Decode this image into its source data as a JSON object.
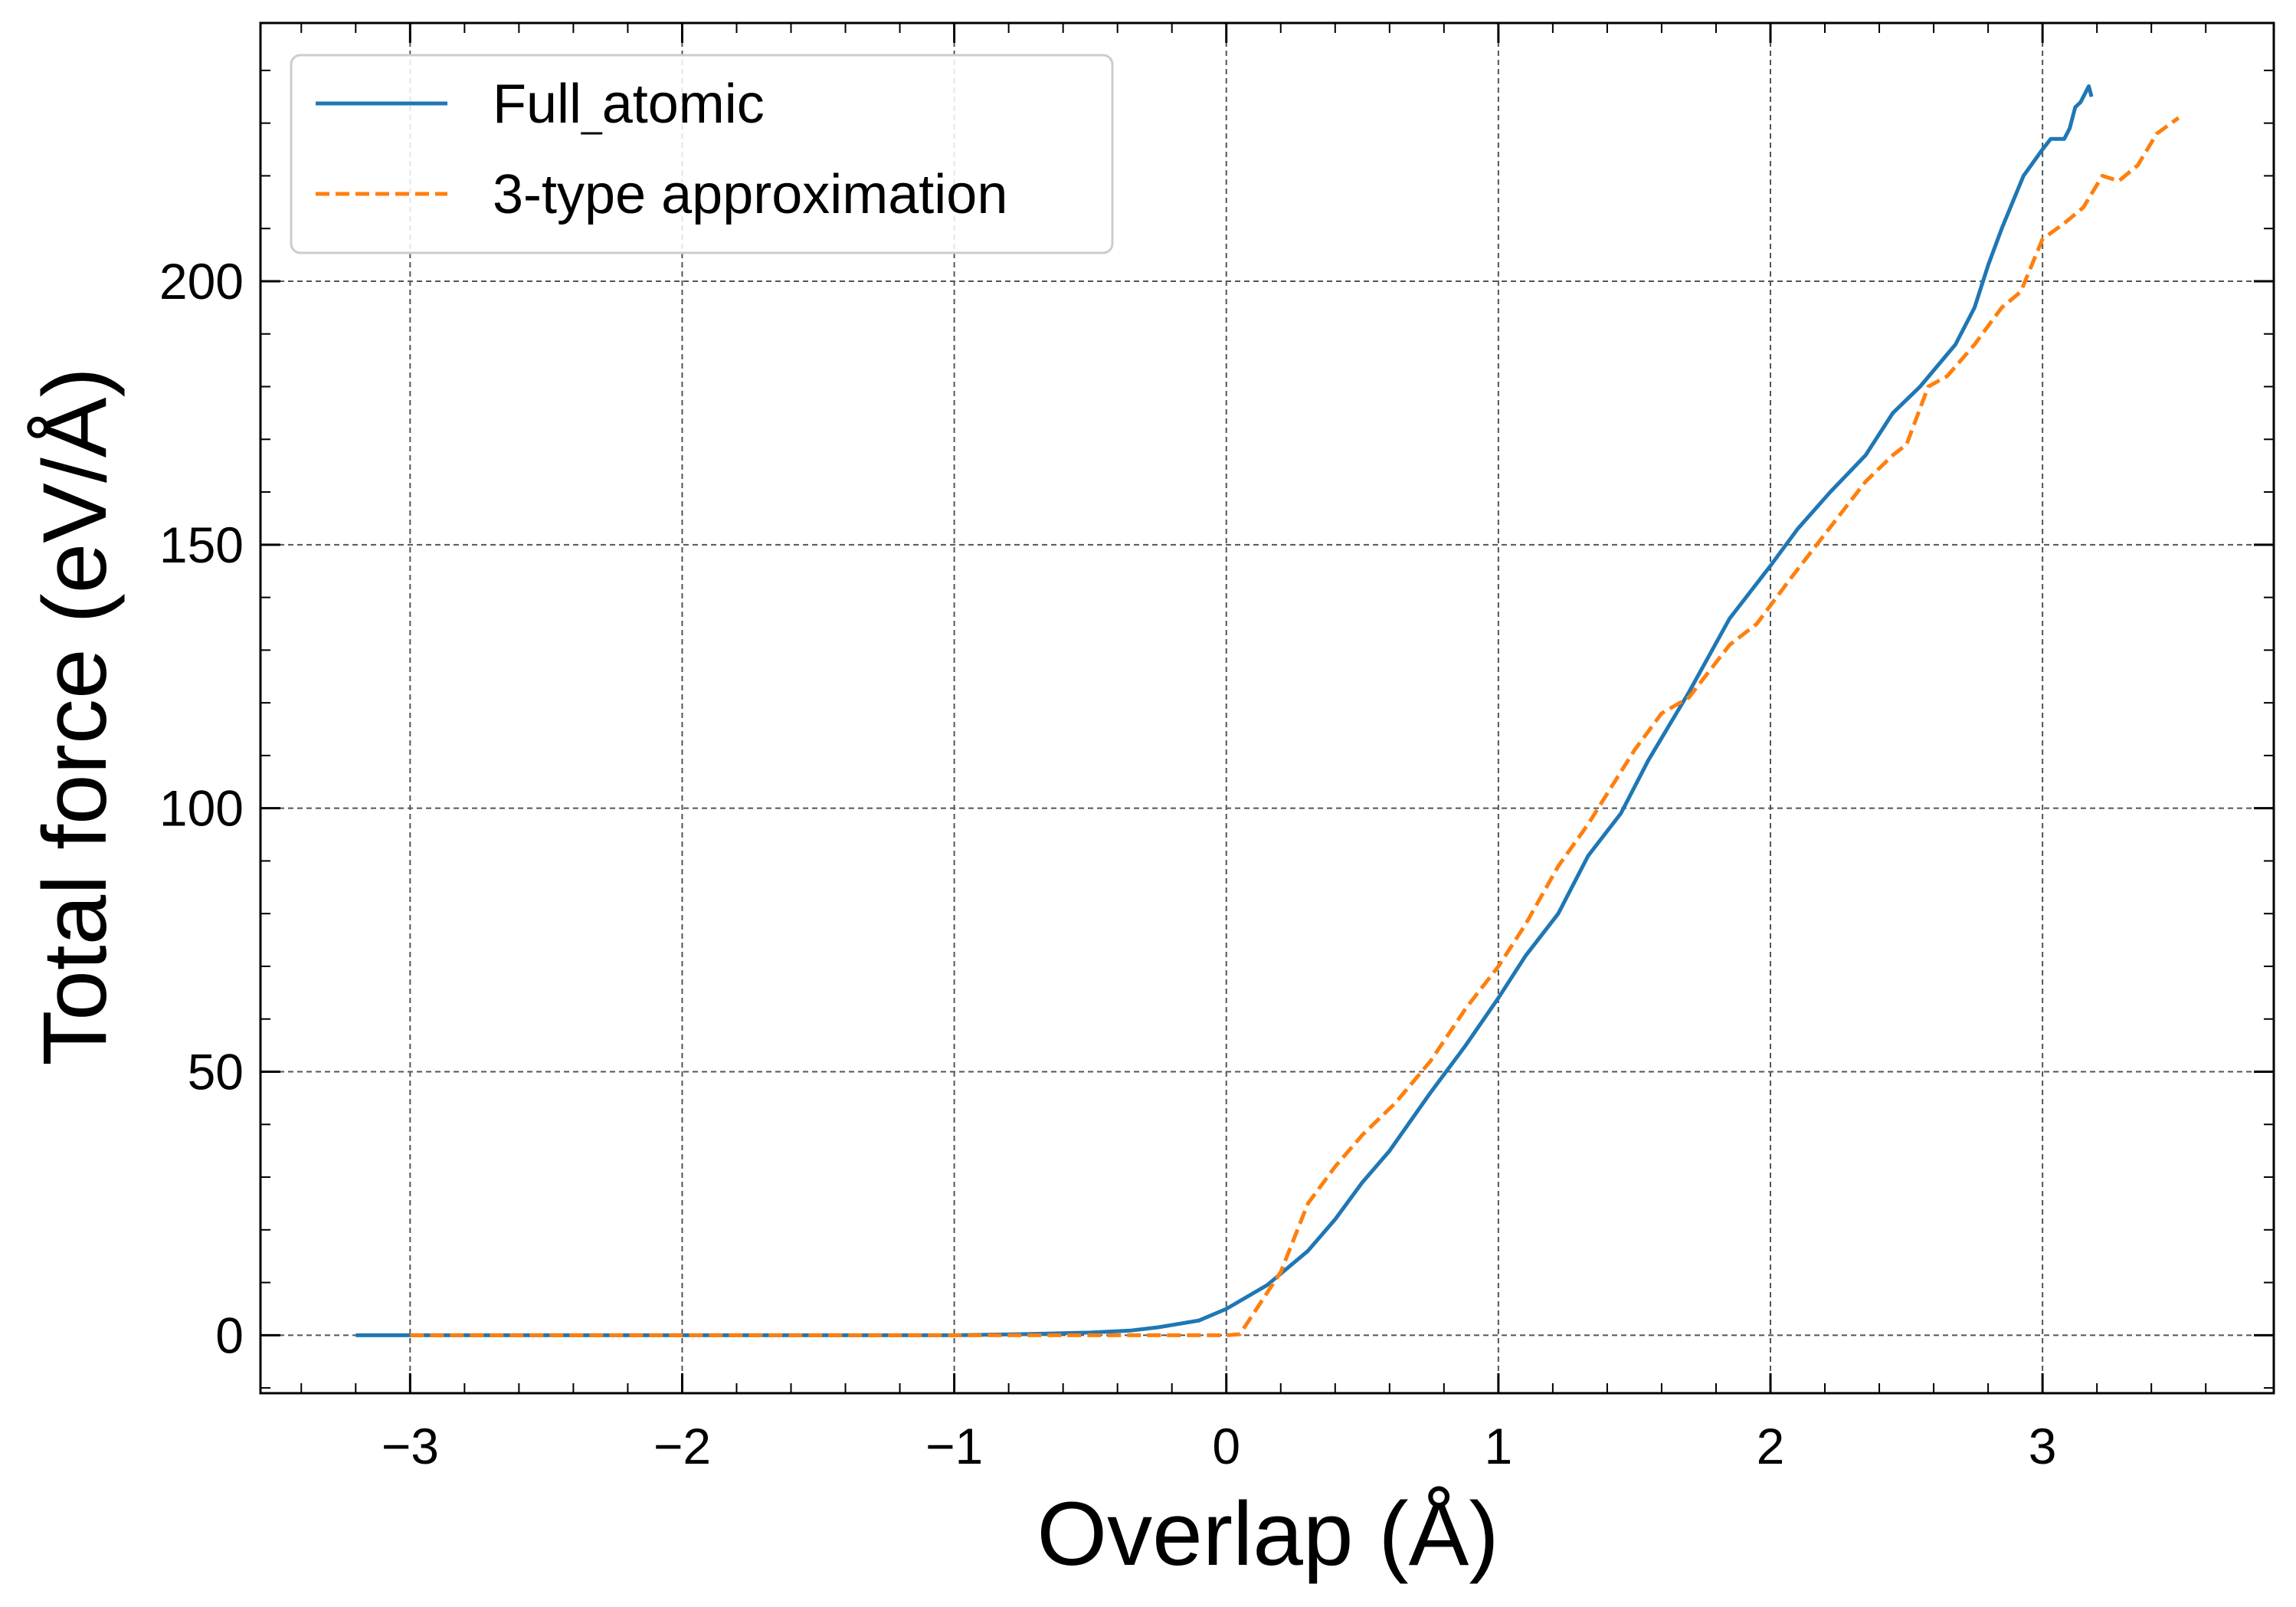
{
  "chart_data": {
    "type": "line",
    "title": "",
    "xlabel": "Overlap (Å)",
    "ylabel": "Total force (eV/Å)",
    "xlim": [
      -3.55,
      3.85
    ],
    "ylim": [
      -11,
      249
    ],
    "x_ticks": [
      -3,
      -2,
      -1,
      0,
      1,
      2,
      3
    ],
    "x_tick_labels": [
      "−3",
      "−2",
      "−1",
      "0",
      "1",
      "2",
      "3"
    ],
    "y_ticks": [
      0,
      50,
      100,
      150,
      200
    ],
    "y_tick_labels": [
      "0",
      "50",
      "100",
      "150",
      "200"
    ],
    "grid": true,
    "legend_position": "top-left",
    "series": [
      {
        "name": "Full_atomic",
        "legend_label": "Full",
        "legend_label_tail": "atomic",
        "color": "#1f77b4",
        "dash": "solid",
        "x": [
          -3.2,
          -3.0,
          -2.5,
          -2.0,
          -1.5,
          -1.0,
          -0.75,
          -0.5,
          -0.35,
          -0.25,
          -0.1,
          0.0,
          0.15,
          0.3,
          0.4,
          0.5,
          0.6,
          0.75,
          0.88,
          1.0,
          1.1,
          1.22,
          1.33,
          1.45,
          1.55,
          1.7,
          1.85,
          2.0,
          2.1,
          2.22,
          2.35,
          2.45,
          2.55,
          2.68,
          2.75,
          2.8,
          2.85,
          2.93,
          3.0,
          3.03,
          3.08,
          3.1,
          3.12,
          3.14,
          3.17,
          3.18
        ],
        "y": [
          0,
          0,
          0,
          0,
          0,
          0,
          0.2,
          0.5,
          0.9,
          1.5,
          2.8,
          5,
          9.5,
          16,
          22,
          29,
          35,
          46,
          55,
          64,
          72,
          80,
          91,
          99,
          109,
          122,
          136,
          146,
          153,
          160,
          167,
          175,
          180,
          188,
          195,
          203,
          210,
          220,
          225,
          227,
          227,
          229,
          233,
          234,
          237,
          235
        ]
      },
      {
        "name": "3-type approximation",
        "color": "#ff7f0e",
        "dash": "dashed",
        "x": [
          -3.0,
          -2.5,
          -2.0,
          -1.5,
          -1.0,
          -0.5,
          0.0,
          0.05,
          0.2,
          0.3,
          0.4,
          0.5,
          0.62,
          0.75,
          0.88,
          1.0,
          1.1,
          1.22,
          1.33,
          1.5,
          1.6,
          1.7,
          1.85,
          1.95,
          2.08,
          2.2,
          2.35,
          2.45,
          2.5,
          2.58,
          2.65,
          2.75,
          2.85,
          2.92,
          3.0,
          3.08,
          3.15,
          3.22,
          3.28,
          3.35,
          3.42,
          3.5
        ],
        "y": [
          0,
          0,
          0,
          0,
          0,
          0,
          0,
          0.2,
          12,
          25,
          32,
          38,
          44,
          52,
          62,
          70,
          78,
          89,
          97,
          111,
          118,
          121,
          131,
          135,
          144,
          152,
          162,
          167,
          169,
          180,
          182,
          188,
          195,
          198,
          208,
          211,
          214,
          220,
          219,
          222,
          228,
          231
        ]
      }
    ]
  }
}
